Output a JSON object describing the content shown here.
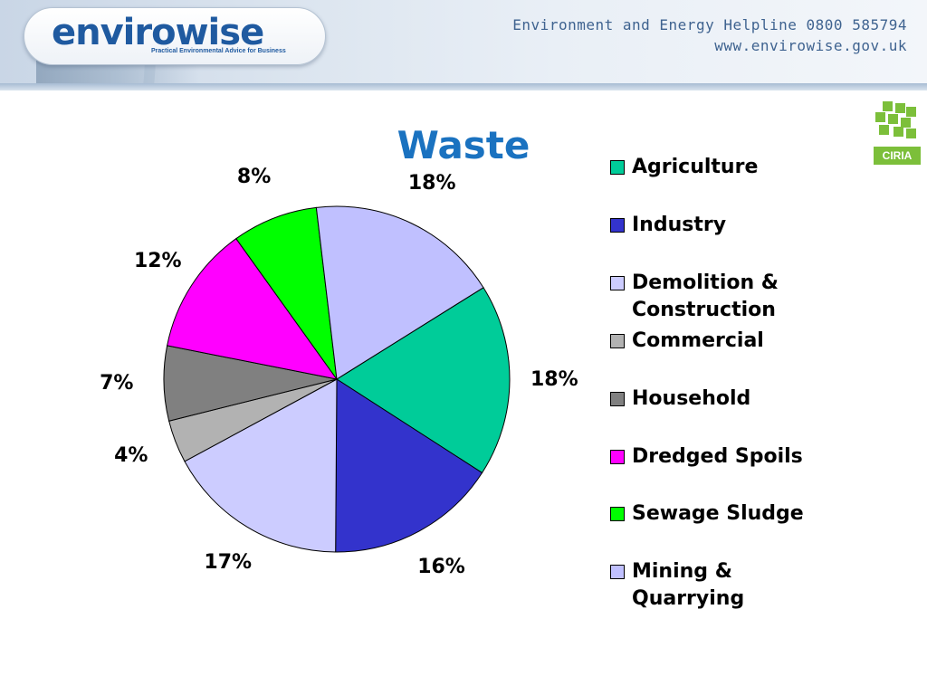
{
  "header": {
    "logo_text": "envirowise",
    "logo_tagline": "Practical Environmental Advice for Business",
    "helpline": "Environment and Energy Helpline 0800 585794",
    "website": "www.envirowise.gov.uk",
    "partner_logo_text": "CIRIA"
  },
  "chart_data": {
    "type": "pie",
    "title": "Waste",
    "slices": [
      {
        "label": "Agriculture",
        "value": 18,
        "value_label": "18%",
        "color": "#00cc99"
      },
      {
        "label": "Industry",
        "value": 16,
        "value_label": "16%",
        "color": "#3333cc"
      },
      {
        "label": "Demolition & Construction",
        "value": 17,
        "value_label": "17%",
        "color": "#ccccff"
      },
      {
        "label": "Commercial",
        "value": 4,
        "value_label": "4%",
        "color": "#b2b2b2"
      },
      {
        "label": "Household",
        "value": 7,
        "value_label": "7%",
        "color": "#808080"
      },
      {
        "label": "Dredged Spoils",
        "value": 12,
        "value_label": "12%",
        "color": "#ff00ff"
      },
      {
        "label": "Sewage Sludge",
        "value": 8,
        "value_label": "8%",
        "color": "#00ff00"
      },
      {
        "label": "Mining & Quarrying",
        "value": 18,
        "value_label": "18%",
        "color": "#c0c0ff"
      }
    ],
    "legend_position": "right"
  }
}
